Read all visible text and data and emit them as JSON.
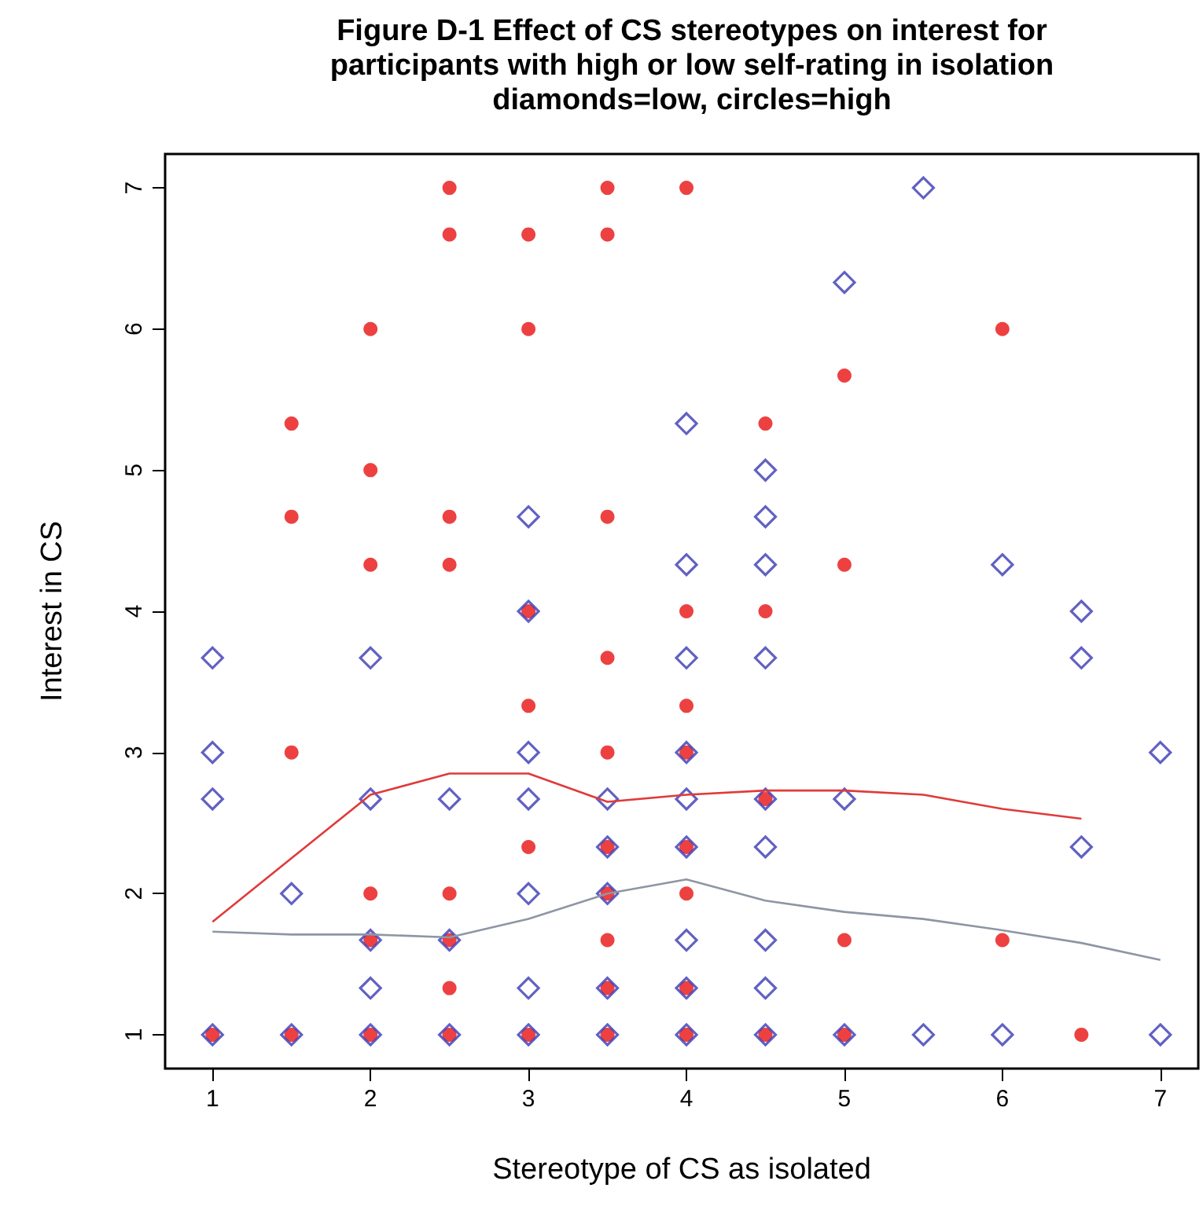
{
  "chart_data": {
    "type": "scatter",
    "title": "Figure D-1 Effect of CS stereotypes on interest for\nparticipants with high or low self-rating in isolation\ndiamonds=low, circles=high",
    "xlabel": "Stereotype of CS as isolated",
    "ylabel": "Interest in CS",
    "xlim": [
      0.7,
      7.24
    ],
    "ylim": [
      0.76,
      7.24
    ],
    "xticks": [
      1,
      2,
      3,
      4,
      5,
      6,
      7
    ],
    "yticks": [
      1,
      2,
      3,
      4,
      5,
      6,
      7
    ],
    "grid": false,
    "series": [
      {
        "marker": "circle",
        "color": "#e81212",
        "x": [
          1,
          1.5,
          1.5,
          1.5,
          1.5,
          2,
          2,
          2,
          2,
          2,
          2,
          2.5,
          2.5,
          2.5,
          2.5,
          2.5,
          2.5,
          2.5,
          2.5,
          3,
          3,
          3,
          3,
          3,
          3,
          3.5,
          3.5,
          3.5,
          3.5,
          3.5,
          3.5,
          3.5,
          3.5,
          3.5,
          3.5,
          4,
          4,
          4,
          4,
          4,
          4,
          4,
          4,
          4.5,
          4.5,
          4.5,
          4.5,
          5,
          5,
          5,
          5,
          6,
          6,
          6.5
        ],
        "values": [
          1,
          5.33,
          4.67,
          3,
          1,
          6,
          5,
          4.33,
          2,
          1.67,
          1,
          7,
          6.67,
          4.67,
          4.33,
          2,
          1.67,
          1.33,
          1,
          6.67,
          6,
          4,
          3.33,
          2.33,
          1,
          7,
          6.67,
          4.67,
          3.67,
          3,
          2.33,
          2,
          1.67,
          1.33,
          1,
          7,
          4,
          3.33,
          3,
          2.33,
          2,
          1.33,
          1,
          5.33,
          4,
          2.67,
          1,
          5.67,
          4.33,
          1.67,
          1,
          6,
          1.67,
          1
        ]
      },
      {
        "marker": "diamond",
        "color": "#3a3ab4",
        "x": [
          1,
          1,
          1,
          1,
          1.5,
          1.5,
          2,
          2,
          2,
          2,
          2,
          2.5,
          2.5,
          2.5,
          3,
          3,
          3,
          3,
          3,
          3,
          3,
          3.5,
          3.5,
          3.5,
          3.5,
          3.5,
          4,
          4,
          4,
          4,
          4,
          4,
          4,
          4,
          4,
          4.5,
          4.5,
          4.5,
          4.5,
          4.5,
          4.5,
          4.5,
          4.5,
          4.5,
          5,
          5,
          5,
          5.5,
          5.5,
          6,
          6,
          6.5,
          6.5,
          6.5,
          7,
          7
        ],
        "values": [
          3.67,
          3,
          2.67,
          1,
          2,
          1,
          3.67,
          2.67,
          1.67,
          1.33,
          1,
          2.67,
          1.67,
          1,
          4.67,
          4,
          3,
          2.67,
          2,
          1.33,
          1,
          2.67,
          2.33,
          2,
          1.33,
          1,
          5.33,
          4.33,
          3.67,
          3,
          2.67,
          2.33,
          1.67,
          1.33,
          1,
          5,
          4.67,
          4.33,
          3.67,
          2.67,
          2.33,
          1.67,
          1.33,
          1,
          6.33,
          2.67,
          1,
          7,
          1,
          4.33,
          1,
          4,
          3.67,
          2.33,
          3,
          1
        ]
      },
      {
        "type": "line",
        "marker": "none",
        "line_style": "solid",
        "color": "#e03a3a",
        "x": [
          1,
          1.5,
          2,
          2.5,
          3,
          3.5,
          4,
          4.5,
          5,
          5.5,
          6,
          6.5
        ],
        "values": [
          1.8,
          2.25,
          2.7,
          2.85,
          2.85,
          2.65,
          2.7,
          2.73,
          2.73,
          2.7,
          2.6,
          2.53
        ]
      },
      {
        "type": "line",
        "marker": "none",
        "line_style": "solid",
        "color": "#8e96a4",
        "x": [
          1,
          1.5,
          2,
          2.5,
          3,
          3.5,
          4,
          4.5,
          5,
          5.5,
          6,
          6.5,
          7
        ],
        "values": [
          1.73,
          1.71,
          1.71,
          1.69,
          1.82,
          2.0,
          2.1,
          1.95,
          1.87,
          1.82,
          1.74,
          1.65,
          1.53
        ]
      }
    ]
  }
}
